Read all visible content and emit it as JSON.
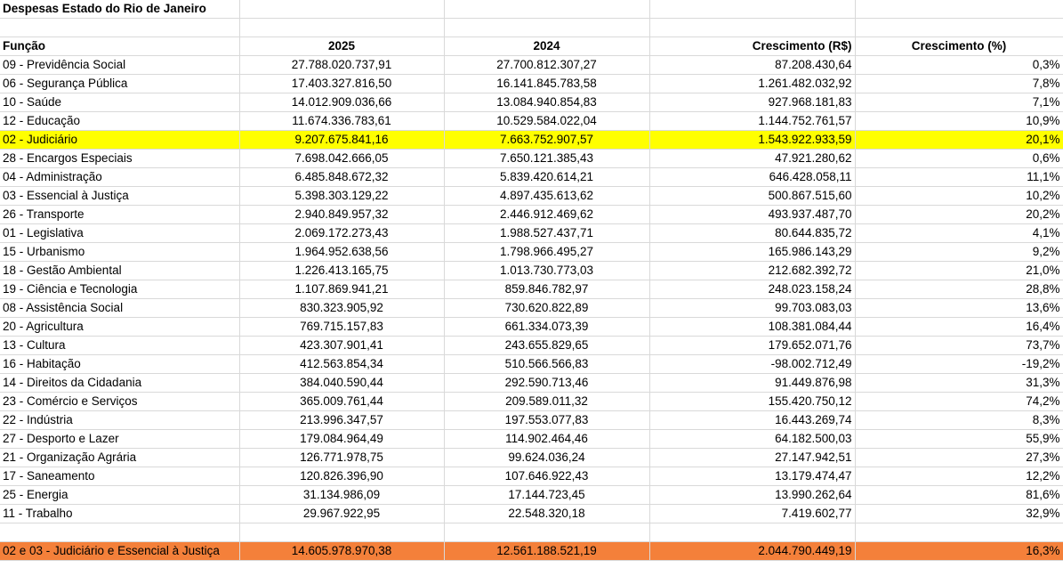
{
  "title": "Despesas Estado do Rio de Janeiro",
  "headers": [
    "Função",
    "2025",
    "2024",
    "Crescimento (R$)",
    "Crescimento (%)"
  ],
  "rows": [
    [
      "09 - Previdência Social",
      "27.788.020.737,91",
      "27.700.812.307,27",
      "87.208.430,64",
      "0,3%"
    ],
    [
      "06 - Segurança Pública",
      "17.403.327.816,50",
      "16.141.845.783,58",
      "1.261.482.032,92",
      "7,8%"
    ],
    [
      "10 - Saúde",
      "14.012.909.036,66",
      "13.084.940.854,83",
      "927.968.181,83",
      "7,1%"
    ],
    [
      "12 - Educação",
      "11.674.336.783,61",
      "10.529.584.022,04",
      "1.144.752.761,57",
      "10,9%"
    ],
    [
      "02 - Judiciário",
      "9.207.675.841,16",
      "7.663.752.907,57",
      "1.543.922.933,59",
      "20,1%"
    ],
    [
      "28 - Encargos Especiais",
      "7.698.042.666,05",
      "7.650.121.385,43",
      "47.921.280,62",
      "0,6%"
    ],
    [
      "04 - Administração",
      "6.485.848.672,32",
      "5.839.420.614,21",
      "646.428.058,11",
      "11,1%"
    ],
    [
      "03 - Essencial à Justiça",
      "5.398.303.129,22",
      "4.897.435.613,62",
      "500.867.515,60",
      "10,2%"
    ],
    [
      "26 - Transporte",
      "2.940.849.957,32",
      "2.446.912.469,62",
      "493.937.487,70",
      "20,2%"
    ],
    [
      "01 - Legislativa",
      "2.069.172.273,43",
      "1.988.527.437,71",
      "80.644.835,72",
      "4,1%"
    ],
    [
      "15 - Urbanismo",
      "1.964.952.638,56",
      "1.798.966.495,27",
      "165.986.143,29",
      "9,2%"
    ],
    [
      "18 - Gestão Ambiental",
      "1.226.413.165,75",
      "1.013.730.773,03",
      "212.682.392,72",
      "21,0%"
    ],
    [
      "19 - Ciência e Tecnologia",
      "1.107.869.941,21",
      "859.846.782,97",
      "248.023.158,24",
      "28,8%"
    ],
    [
      "08 - Assistência Social",
      "830.323.905,92",
      "730.620.822,89",
      "99.703.083,03",
      "13,6%"
    ],
    [
      "20 - Agricultura",
      "769.715.157,83",
      "661.334.073,39",
      "108.381.084,44",
      "16,4%"
    ],
    [
      "13 - Cultura",
      "423.307.901,41",
      "243.655.829,65",
      "179.652.071,76",
      "73,7%"
    ],
    [
      "16 - Habitação",
      "412.563.854,34",
      "510.566.566,83",
      "-98.002.712,49",
      "-19,2%"
    ],
    [
      "14 - Direitos da Cidadania",
      "384.040.590,44",
      "292.590.713,46",
      "91.449.876,98",
      "31,3%"
    ],
    [
      "23 - Comércio e Serviços",
      "365.009.761,44",
      "209.589.011,32",
      "155.420.750,12",
      "74,2%"
    ],
    [
      "22 - Indústria",
      "213.996.347,57",
      "197.553.077,83",
      "16.443.269,74",
      "8,3%"
    ],
    [
      "27 - Desporto e Lazer",
      "179.084.964,49",
      "114.902.464,46",
      "64.182.500,03",
      "55,9%"
    ],
    [
      "21 - Organização Agrária",
      "126.771.978,75",
      "99.624.036,24",
      "27.147.942,51",
      "27,3%"
    ],
    [
      "17 - Saneamento",
      "120.826.396,90",
      "107.646.922,43",
      "13.179.474,47",
      "12,2%"
    ],
    [
      "25 - Energia",
      "31.134.986,09",
      "17.144.723,45",
      "13.990.262,64",
      "81,6%"
    ],
    [
      "11 - Trabalho",
      "29.967.922,95",
      "22.548.320,18",
      "7.419.602,77",
      "32,9%"
    ]
  ],
  "highlight_row_index": 4,
  "highlight_color": "#ffff00",
  "total": [
    "02 e 03 - Judiciário e Essencial à Justiça",
    "14.605.978.970,38",
    "12.561.188.521,19",
    "2.044.790.449,19",
    "16,3%"
  ],
  "total_color": "#f4803a"
}
